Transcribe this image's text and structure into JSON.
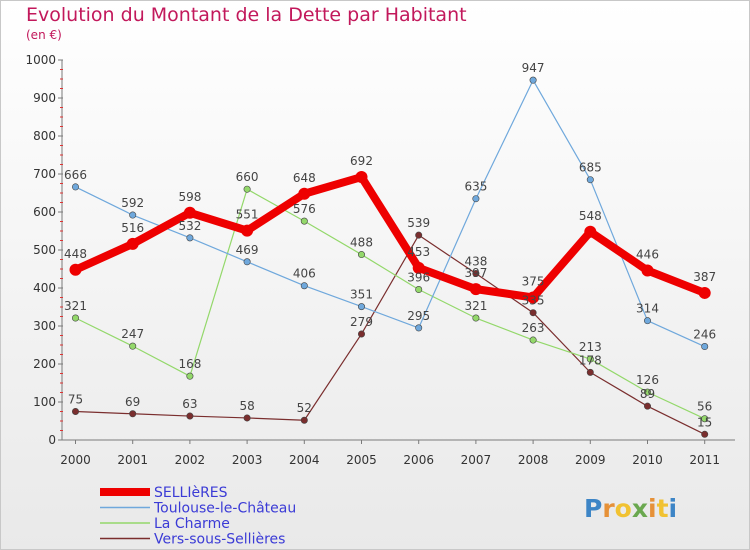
{
  "chart_data": {
    "type": "line",
    "title": "Evolution du Montant de la Dette par Habitant",
    "subtitle": "(en €)",
    "x": [
      "2000",
      "2001",
      "2002",
      "2003",
      "2004",
      "2005",
      "2006",
      "2007",
      "2008",
      "2009",
      "2010",
      "2011"
    ],
    "ylim": [
      0,
      1000
    ],
    "yticks": [
      0,
      100,
      200,
      300,
      400,
      500,
      600,
      700,
      800,
      900,
      1000
    ],
    "grid": false,
    "legend_position": "bottom-left",
    "series": [
      {
        "name": "SELLIèRES",
        "color": "#ee0000",
        "values": [
          448,
          516,
          598,
          551,
          648,
          692,
          453,
          397,
          375,
          548,
          446,
          387
        ]
      },
      {
        "name": "Toulouse-le-Château",
        "color": "#6fa8dc",
        "values": [
          666,
          592,
          532,
          469,
          406,
          351,
          295,
          635,
          947,
          685,
          314,
          246
        ]
      },
      {
        "name": "La Charme",
        "color": "#93d86a",
        "values": [
          321,
          247,
          168,
          660,
          576,
          488,
          396,
          321,
          263,
          213,
          126,
          56
        ]
      },
      {
        "name": "Vers-sous-Sellières",
        "color": "#7a2e2e",
        "values": [
          75,
          69,
          63,
          58,
          52,
          279,
          539,
          438,
          335,
          178,
          89,
          15
        ]
      }
    ]
  },
  "brand": {
    "logo_text": "Proxiti"
  }
}
